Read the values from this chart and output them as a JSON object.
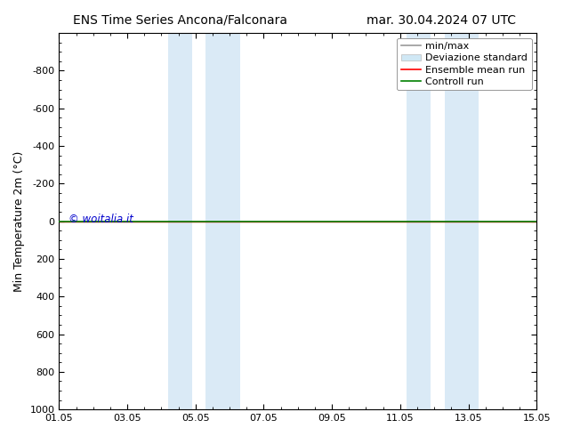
{
  "title_left": "ENS Time Series Ancona/Falconara",
  "title_right": "mar. 30.04.2024 07 UTC",
  "ylabel": "Min Temperature 2m (°C)",
  "xlabel": "",
  "ylim": [
    -1000,
    1000
  ],
  "yticks": [
    -800,
    -600,
    -400,
    -200,
    0,
    200,
    400,
    600,
    800,
    1000
  ],
  "xtick_labels": [
    "01.05",
    "03.05",
    "05.05",
    "07.05",
    "09.05",
    "11.05",
    "13.05",
    "15.05"
  ],
  "xtick_positions": [
    0,
    2,
    4,
    6,
    8,
    10,
    12,
    14
  ],
  "shaded_regions": [
    {
      "xmin": 3.0,
      "xmax": 3.7,
      "color": "#daeaf6"
    },
    {
      "xmin": 3.7,
      "xmax": 5.3,
      "color": "#daeaf6"
    },
    {
      "xmin": 10.0,
      "xmax": 10.7,
      "color": "#daeaf6"
    },
    {
      "xmin": 10.7,
      "xmax": 12.3,
      "color": "#daeaf6"
    }
  ],
  "green_line_y": 0,
  "red_line_y": 0,
  "watermark": "© woitalia.it",
  "watermark_color": "#0000cc",
  "background_color": "#ffffff",
  "plot_bg_color": "#ffffff",
  "legend_entries": [
    {
      "label": "min/max",
      "color": "#999999",
      "lw": 1.2,
      "type": "line"
    },
    {
      "label": "Deviazione standard",
      "color": "#d0e8f5",
      "lw": 8,
      "type": "patch"
    },
    {
      "label": "Ensemble mean run",
      "color": "red",
      "lw": 1.2,
      "type": "line"
    },
    {
      "label": "Controll run",
      "color": "green",
      "lw": 1.2,
      "type": "line"
    }
  ],
  "title_fontsize": 10,
  "axis_fontsize": 9,
  "tick_fontsize": 8,
  "legend_fontsize": 8
}
